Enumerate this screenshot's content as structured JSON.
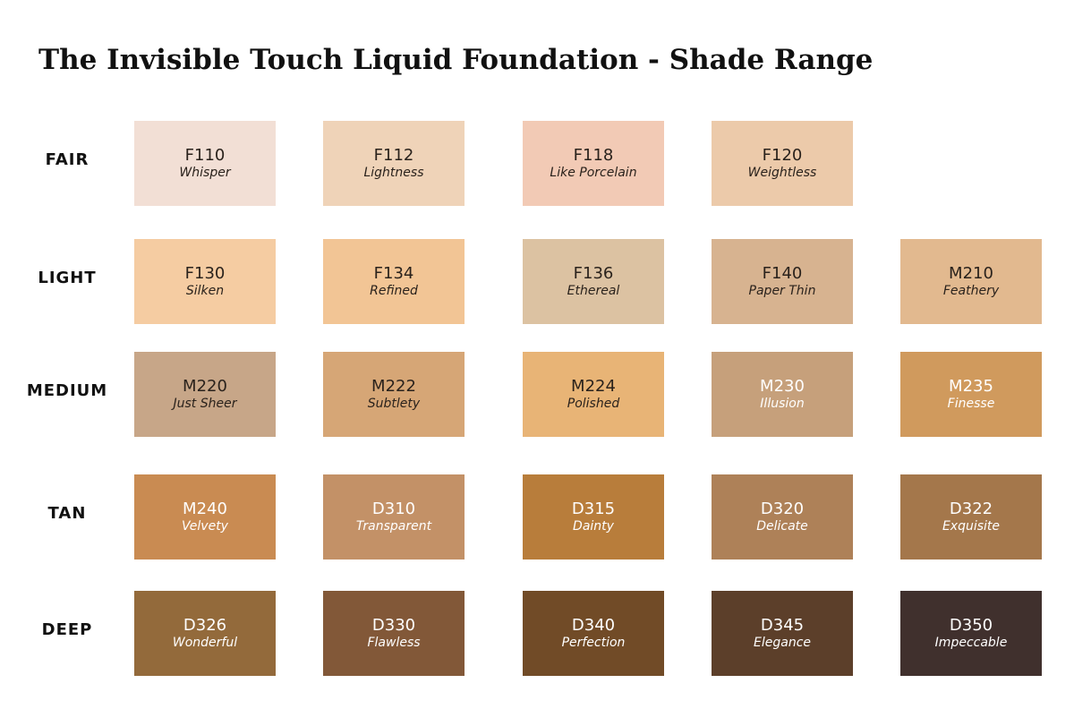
{
  "title": "The Invisible Touch Liquid Foundation - Shade Range",
  "rows": [
    {
      "label": "FAIR",
      "shades": [
        {
          "code": "F110",
          "name": "Whisper",
          "color": "#f2dfd5",
          "text_color": "#2a221c"
        },
        {
          "code": "F112",
          "name": "Lightness",
          "color": "#efd3b8",
          "text_color": "#2a221c"
        },
        {
          "code": "F118",
          "name": "Like Porcelain",
          "color": "#f2cab5",
          "text_color": "#2a221c"
        },
        {
          "code": "F120",
          "name": "Weightless",
          "color": "#eccaaa",
          "text_color": "#2a221c"
        }
      ]
    },
    {
      "label": "LIGHT",
      "shades": [
        {
          "code": "F130",
          "name": "Silken",
          "color": "#f5cca2",
          "text_color": "#2a221c"
        },
        {
          "code": "F134",
          "name": "Refined",
          "color": "#f2c595",
          "text_color": "#2a221c"
        },
        {
          "code": "F136",
          "name": "Ethereal",
          "color": "#dcc2a2",
          "text_color": "#2a221c"
        },
        {
          "code": "F140",
          "name": "Paper Thin",
          "color": "#d7b390",
          "text_color": "#2a221c"
        },
        {
          "code": "M210",
          "name": "Feathery",
          "color": "#e2b98f",
          "text_color": "#2a221c"
        }
      ]
    },
    {
      "label": "MEDIUM",
      "shades": [
        {
          "code": "M220",
          "name": "Just Sheer",
          "color": "#c7a688",
          "text_color": "#2a221c"
        },
        {
          "code": "M222",
          "name": "Subtlety",
          "color": "#d6a676",
          "text_color": "#2a221c"
        },
        {
          "code": "M224",
          "name": "Polished",
          "color": "#e8b476",
          "text_color": "#2a221c"
        },
        {
          "code": "M230",
          "name": "Illusion",
          "color": "#c6a07b",
          "text_color": "#ffffff"
        },
        {
          "code": "M235",
          "name": "Finesse",
          "color": "#d09a5d",
          "text_color": "#ffffff"
        }
      ]
    },
    {
      "label": "TAN",
      "shades": [
        {
          "code": "M240",
          "name": "Velvety",
          "color": "#c98b52",
          "text_color": "#ffffff"
        },
        {
          "code": "D310",
          "name": "Transparent",
          "color": "#c39167",
          "text_color": "#ffffff"
        },
        {
          "code": "D315",
          "name": "Dainty",
          "color": "#b87d3b",
          "text_color": "#ffffff"
        },
        {
          "code": "D320",
          "name": "Delicate",
          "color": "#ae8158",
          "text_color": "#ffffff"
        },
        {
          "code": "D322",
          "name": "Exquisite",
          "color": "#a4774b",
          "text_color": "#ffffff"
        }
      ]
    },
    {
      "label": "DEEP",
      "shades": [
        {
          "code": "D326",
          "name": "Wonderful",
          "color": "#936a3b",
          "text_color": "#ffffff"
        },
        {
          "code": "D330",
          "name": "Flawless",
          "color": "#825838",
          "text_color": "#ffffff"
        },
        {
          "code": "D340",
          "name": "Perfection",
          "color": "#714b27",
          "text_color": "#ffffff"
        },
        {
          "code": "D345",
          "name": "Elegance",
          "color": "#5c3f2a",
          "text_color": "#ffffff"
        },
        {
          "code": "D350",
          "name": "Impeccable",
          "color": "#40302d",
          "text_color": "#ffffff"
        }
      ]
    }
  ]
}
